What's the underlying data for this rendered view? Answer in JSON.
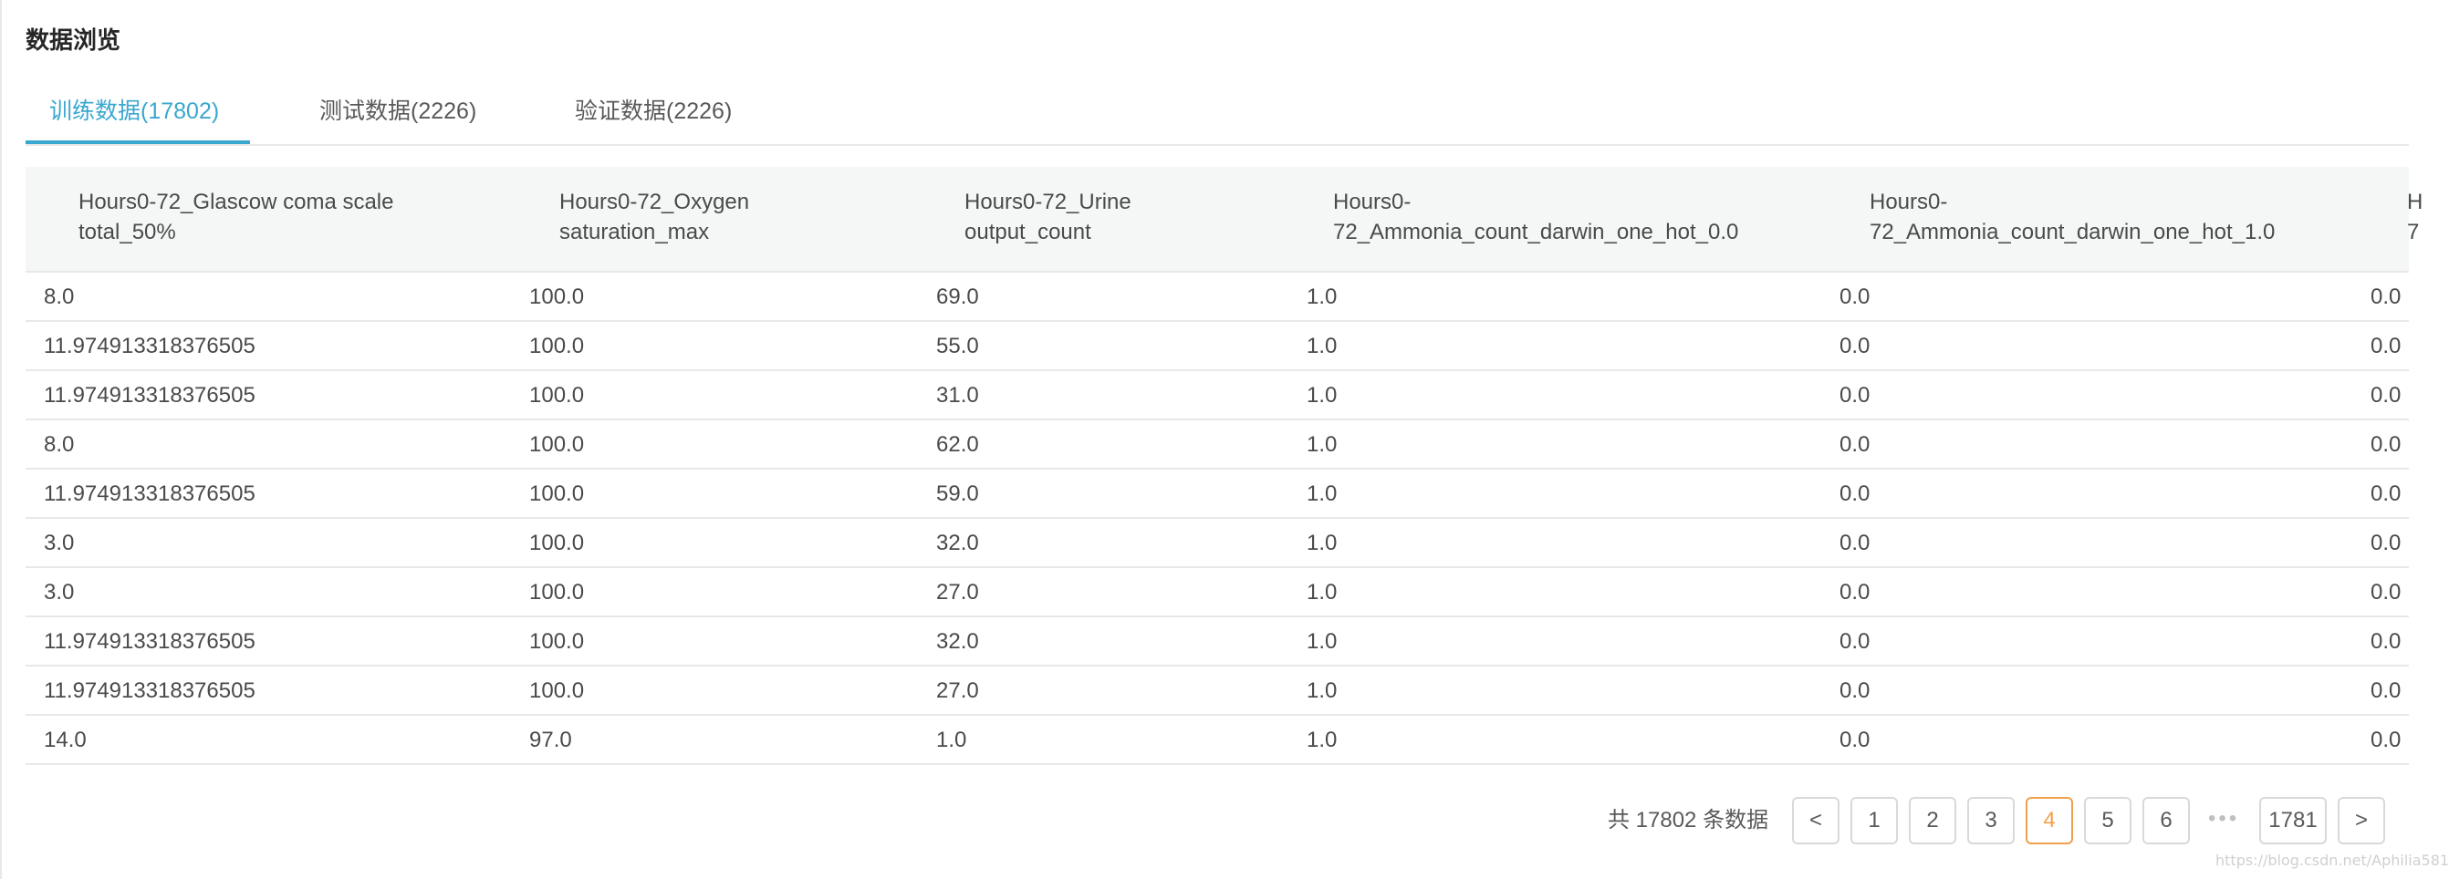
{
  "page": {
    "title": "数据浏览"
  },
  "tabs": [
    {
      "label": "训练数据(17802)",
      "active": true
    },
    {
      "label": "测试数据(2226)",
      "active": false
    },
    {
      "label": "验证数据(2226)",
      "active": false
    }
  ],
  "table": {
    "columns": [
      {
        "line1": "Hours0-72_Glascow coma scale",
        "line2": "total_50%"
      },
      {
        "line1": "Hours0-72_Oxygen",
        "line2": "saturation_max"
      },
      {
        "line1": "Hours0-72_Urine",
        "line2": "output_count"
      },
      {
        "line1": "Hours0-",
        "line2": "72_Ammonia_count_darwin_one_hot_0.0"
      },
      {
        "line1": "Hours0-",
        "line2": "72_Ammonia_count_darwin_one_hot_1.0"
      },
      {
        "line1": "H",
        "line2": "7"
      }
    ],
    "rows": [
      [
        "8.0",
        "100.0",
        "69.0",
        "1.0",
        "0.0",
        "0.0"
      ],
      [
        "11.974913318376505",
        "100.0",
        "55.0",
        "1.0",
        "0.0",
        "0.0"
      ],
      [
        "11.974913318376505",
        "100.0",
        "31.0",
        "1.0",
        "0.0",
        "0.0"
      ],
      [
        "8.0",
        "100.0",
        "62.0",
        "1.0",
        "0.0",
        "0.0"
      ],
      [
        "11.974913318376505",
        "100.0",
        "59.0",
        "1.0",
        "0.0",
        "0.0"
      ],
      [
        "3.0",
        "100.0",
        "32.0",
        "1.0",
        "0.0",
        "0.0"
      ],
      [
        "3.0",
        "100.0",
        "27.0",
        "1.0",
        "0.0",
        "0.0"
      ],
      [
        "11.974913318376505",
        "100.0",
        "32.0",
        "1.0",
        "0.0",
        "0.0"
      ],
      [
        "11.974913318376505",
        "100.0",
        "27.0",
        "1.0",
        "0.0",
        "0.0"
      ],
      [
        "14.0",
        "97.0",
        "1.0",
        "1.0",
        "0.0",
        "0.0"
      ]
    ]
  },
  "pagination": {
    "total_text": "共 17802 条数据",
    "prev": "<",
    "next": ">",
    "pages": [
      "1",
      "2",
      "3",
      "4",
      "5",
      "6"
    ],
    "current": "4",
    "ellipsis": "•••",
    "last": "1781"
  },
  "watermark": "https://blog.csdn.net/Aphilia581",
  "colors": {
    "accent": "#3aa7cf",
    "current_page": "#f0a04b",
    "header_bg": "#f5f7f7"
  }
}
